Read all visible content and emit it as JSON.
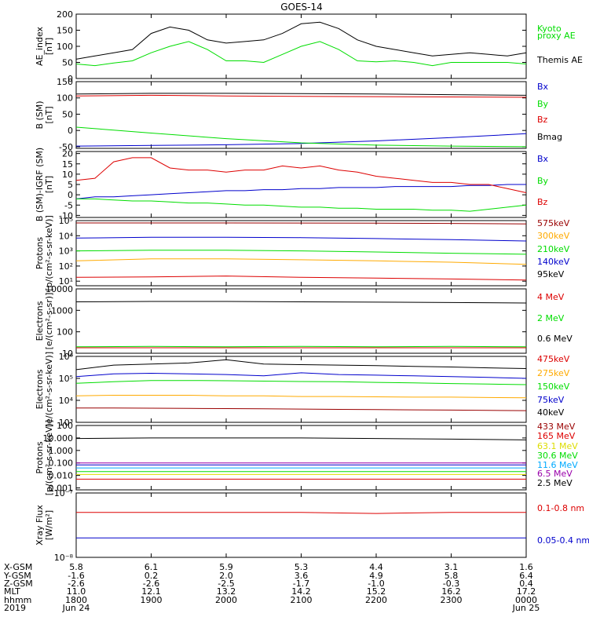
{
  "title": "GOES-14",
  "colors": {
    "black": "#000000",
    "green": "#00dd00",
    "red": "#dd0000",
    "blue": "#0000cc",
    "orange": "#ffaa00",
    "darkred": "#990000",
    "yellow": "#dddd00",
    "cyan": "#00aaff",
    "purple": "#9900aa"
  },
  "chart_data": [
    {
      "type": "line",
      "ylabel": "AE_index",
      "yunit": "[nT]",
      "ylim": [
        0,
        200
      ],
      "ticks": [
        {
          "v": 200,
          "l": "200"
        },
        {
          "v": 150,
          "l": "150"
        },
        {
          "v": 100,
          "l": "100"
        },
        {
          "v": 50,
          "l": "50"
        },
        {
          "v": 0,
          "l": "0"
        }
      ],
      "x": [
        0,
        0.25,
        0.5,
        0.75,
        1,
        1.25,
        1.5,
        1.75,
        2,
        2.25,
        2.5,
        2.75,
        3,
        3.25,
        3.5,
        3.75,
        4,
        4.25,
        4.5,
        4.75,
        5,
        5.25,
        5.5,
        5.75,
        6
      ],
      "series": [
        {
          "name": "Kyoto proxy AE",
          "color": "green",
          "values": [
            45,
            40,
            48,
            55,
            80,
            100,
            115,
            90,
            55,
            55,
            50,
            75,
            100,
            115,
            90,
            55,
            52,
            55,
            50,
            40,
            50,
            50,
            50,
            50,
            45
          ]
        },
        {
          "name": "Themis AE",
          "color": "black",
          "values": [
            60,
            70,
            80,
            90,
            140,
            160,
            150,
            120,
            110,
            115,
            120,
            140,
            170,
            175,
            155,
            120,
            100,
            90,
            80,
            70,
            75,
            80,
            75,
            70,
            80
          ]
        }
      ],
      "legend": [
        {
          "text": "Kyoto",
          "color": "green"
        },
        {
          "text": "proxy AE",
          "color": "green"
        },
        {
          "text": "Themis AE",
          "color": "black"
        }
      ]
    },
    {
      "type": "line",
      "ylabel": "B (SM)",
      "yunit": "[nT]",
      "ylim": [
        -55,
        150
      ],
      "ticks": [
        {
          "v": 150,
          "l": "150"
        },
        {
          "v": 100,
          "l": "100"
        },
        {
          "v": 50,
          "l": "50"
        },
        {
          "v": 0,
          "l": "0"
        },
        {
          "v": -50,
          "l": "-50"
        }
      ],
      "x": [
        0,
        1,
        2,
        3,
        4,
        5,
        6
      ],
      "series": [
        {
          "name": "Bx",
          "color": "blue",
          "values": [
            -48,
            -46,
            -44,
            -40,
            -32,
            -22,
            -10
          ]
        },
        {
          "name": "By",
          "color": "green",
          "values": [
            10,
            -8,
            -25,
            -38,
            -45,
            -48,
            -50
          ]
        },
        {
          "name": "Bz",
          "color": "red",
          "values": [
            106,
            108,
            106,
            105,
            104,
            103,
            102
          ]
        },
        {
          "name": "Bmag",
          "color": "black",
          "values": [
            112,
            114,
            114,
            113,
            112,
            110,
            108
          ]
        }
      ],
      "legend": [
        {
          "text": "Bx",
          "color": "blue"
        },
        {
          "text": "By",
          "color": "green"
        },
        {
          "text": "Bz",
          "color": "red"
        },
        {
          "text": "Bmag",
          "color": "black"
        }
      ]
    },
    {
      "type": "line",
      "ylabel": "B (SM)-IGRF (SM)",
      "yunit": "[nT]",
      "ylim": [
        -11,
        21
      ],
      "ticks": [
        {
          "v": 20,
          "l": "20"
        },
        {
          "v": 15,
          "l": "15"
        },
        {
          "v": 10,
          "l": "10"
        },
        {
          "v": 5,
          "l": "5"
        },
        {
          "v": 0,
          "l": "0"
        },
        {
          "v": -5,
          "l": "-5"
        },
        {
          "v": -10,
          "l": "-10"
        }
      ],
      "x": [
        0,
        0.25,
        0.5,
        0.75,
        1,
        1.25,
        1.5,
        1.75,
        2,
        2.25,
        2.5,
        2.75,
        3,
        3.25,
        3.5,
        3.75,
        4,
        4.25,
        4.5,
        4.75,
        5,
        5.25,
        5.5,
        5.75,
        6
      ],
      "series": [
        {
          "name": "Bx",
          "color": "blue",
          "values": [
            -2,
            -1,
            -1,
            -0.5,
            0,
            0.5,
            1,
            1.5,
            2,
            2,
            2.5,
            2.5,
            3,
            3,
            3.5,
            3.5,
            3.5,
            4,
            4,
            4,
            4,
            4.5,
            4.5,
            5,
            5
          ]
        },
        {
          "name": "By",
          "color": "green",
          "values": [
            -2,
            -2,
            -2.5,
            -3,
            -3,
            -3.5,
            -4,
            -4,
            -4.5,
            -5,
            -5,
            -5.5,
            -6,
            -6,
            -6.5,
            -6.5,
            -7,
            -7,
            -7,
            -7.5,
            -7.5,
            -8,
            -7,
            -6,
            -5
          ]
        },
        {
          "name": "Bz",
          "color": "red",
          "values": [
            7,
            8,
            16,
            18,
            18,
            13,
            12,
            12,
            11,
            12,
            12,
            14,
            13,
            14,
            12,
            11,
            9,
            8,
            7,
            6,
            6,
            5,
            5,
            3,
            1
          ]
        }
      ],
      "legend": [
        {
          "text": "Bx",
          "color": "blue"
        },
        {
          "text": "By",
          "color": "green"
        },
        {
          "text": "Bz",
          "color": "red"
        }
      ]
    },
    {
      "type": "line",
      "log": true,
      "ylabel": "Protons",
      "yunit": "[p/(cm²-s-sr-keV)]",
      "ylim": [
        5,
        100000
      ],
      "ticks": [
        {
          "v": 100000,
          "l": "10⁵"
        },
        {
          "v": 10000,
          "l": "10⁴"
        },
        {
          "v": 1000,
          "l": "10³"
        },
        {
          "v": 100,
          "l": "10²"
        },
        {
          "v": 10,
          "l": "10¹"
        }
      ],
      "x": [
        0,
        1,
        2,
        3,
        4,
        5,
        6
      ],
      "series": [
        {
          "name": "575keV",
          "color": "darkred",
          "values": [
            70000,
            70000,
            70000,
            69000,
            68000,
            65000,
            60000
          ]
        },
        {
          "name": "300keV",
          "color": "blue",
          "values": [
            7000,
            8000,
            8000,
            7500,
            6500,
            5500,
            4500
          ]
        },
        {
          "name": "210keV",
          "color": "green",
          "values": [
            1000,
            1100,
            1100,
            1000,
            850,
            700,
            600
          ]
        },
        {
          "name": "140keV",
          "color": "orange",
          "values": [
            220,
            300,
            300,
            260,
            220,
            180,
            130
          ]
        },
        {
          "name": "95keV",
          "color": "red",
          "values": [
            18,
            19,
            22,
            18,
            16,
            14,
            12
          ]
        }
      ],
      "legend": [
        {
          "text": "575keV",
          "color": "darkred"
        },
        {
          "text": "300keV",
          "color": "orange"
        },
        {
          "text": "210keV",
          "color": "green"
        },
        {
          "text": "140keV",
          "color": "blue"
        },
        {
          "text": "95keV",
          "color": "black"
        }
      ]
    },
    {
      "type": "line",
      "log": true,
      "ylabel": "Electrons",
      "yunit": "[e/(cm²-s-sr)]",
      "ylim": [
        10,
        10000
      ],
      "ticks": [
        {
          "v": 10000,
          "l": "10000"
        },
        {
          "v": 1000,
          "l": "1000"
        },
        {
          "v": 100,
          "l": "100"
        },
        {
          "v": 10,
          "l": "10"
        }
      ],
      "x": [
        0,
        1,
        2,
        3,
        4,
        5,
        6
      ],
      "series": [
        {
          "name": "0.6 MeV",
          "color": "black",
          "values": [
            2500,
            2600,
            2600,
            2500,
            2400,
            2300,
            2200
          ]
        },
        {
          "name": "2 MeV",
          "color": "green",
          "values": [
            20,
            21,
            20,
            21,
            20,
            21,
            20
          ]
        },
        {
          "name": "4 MeV",
          "color": "red",
          "values": [
            18,
            18,
            18,
            18,
            18,
            18,
            18
          ]
        }
      ],
      "legend": [
        {
          "text": "4 MeV",
          "color": "red"
        },
        {
          "text": "2 MeV",
          "color": "green"
        },
        {
          "text": "0.6 MeV",
          "color": "black"
        }
      ]
    },
    {
      "type": "line",
      "log": true,
      "ylabel": "Electrons",
      "yunit": "[e/(cm²-s-sr-keV)]",
      "ylim": [
        1000,
        1000000
      ],
      "ticks": [
        {
          "v": 1000000,
          "l": "10⁶"
        },
        {
          "v": 100000,
          "l": "10⁵"
        },
        {
          "v": 10000,
          "l": "10⁴"
        },
        {
          "v": 1000,
          "l": "10³"
        }
      ],
      "x": [
        0,
        0.5,
        1,
        1.5,
        2,
        2.5,
        3,
        3.5,
        4,
        4.5,
        5,
        5.5,
        6
      ],
      "series": [
        {
          "name": "475keV",
          "color": "black",
          "values": [
            250000,
            400000,
            450000,
            500000,
            700000,
            450000,
            420000,
            400000,
            380000,
            350000,
            330000,
            300000,
            280000
          ]
        },
        {
          "name": "275keV",
          "color": "blue",
          "values": [
            120000,
            160000,
            170000,
            160000,
            150000,
            130000,
            180000,
            150000,
            140000,
            130000,
            120000,
            110000,
            100000
          ]
        },
        {
          "name": "150keV",
          "color": "green",
          "values": [
            60000,
            70000,
            80000,
            80000,
            78000,
            75000,
            72000,
            70000,
            66000,
            62000,
            58000,
            55000,
            52000
          ]
        },
        {
          "name": "75keV",
          "color": "orange",
          "values": [
            16000,
            17000,
            17000,
            17000,
            16000,
            16000,
            15000,
            15000,
            14500,
            14000,
            14000,
            13500,
            13000
          ]
        },
        {
          "name": "40keV",
          "color": "darkred",
          "values": [
            4500,
            4500,
            4400,
            4300,
            4200,
            4100,
            4000,
            3900,
            3800,
            3700,
            3600,
            3500,
            3400
          ]
        }
      ],
      "legend": [
        {
          "text": "475keV",
          "color": "red"
        },
        {
          "text": "275keV",
          "color": "orange"
        },
        {
          "text": "150keV",
          "color": "green"
        },
        {
          "text": "75keV",
          "color": "blue"
        },
        {
          "text": "40keV",
          "color": "black"
        }
      ]
    },
    {
      "type": "line",
      "log": true,
      "ylabel": "Protons",
      "yunit": "[p/(cm²-s-sr-keV)]",
      "ylim": [
        0.0007,
        100
      ],
      "ticks": [
        {
          "v": 100,
          "l": "100"
        },
        {
          "v": 10,
          "l": "10.000"
        },
        {
          "v": 1,
          "l": "1.000"
        },
        {
          "v": 0.1,
          "l": "0.100"
        },
        {
          "v": 0.01,
          "l": "0.010"
        },
        {
          "v": 0.001,
          "l": "0.001"
        }
      ],
      "x": [
        0,
        1,
        2,
        3,
        4,
        5,
        6
      ],
      "series": [
        {
          "name": "433 MeV",
          "color": "black",
          "values": [
            9,
            10,
            10,
            10,
            9,
            8,
            7
          ]
        },
        {
          "name": "165 MeV",
          "color": "purple",
          "values": [
            0.1,
            0.1,
            0.1,
            0.1,
            0.1,
            0.1,
            0.1
          ]
        },
        {
          "name": "63.1 MeV",
          "color": "blue",
          "values": [
            0.07,
            0.07,
            0.07,
            0.07,
            0.07,
            0.07,
            0.07
          ]
        },
        {
          "name": "30.6 MeV",
          "color": "cyan",
          "values": [
            0.04,
            0.04,
            0.04,
            0.04,
            0.04,
            0.04,
            0.04
          ]
        },
        {
          "name": "11.6 MeV",
          "color": "green",
          "values": [
            0.02,
            0.02,
            0.02,
            0.02,
            0.02,
            0.02,
            0.02
          ]
        },
        {
          "name": "6.5 MeV",
          "color": "yellow",
          "values": [
            0.012,
            0.012,
            0.012,
            0.012,
            0.012,
            0.012,
            0.012
          ]
        },
        {
          "name": "2.5 MeV",
          "color": "red",
          "values": [
            0.005,
            0.005,
            0.005,
            0.005,
            0.005,
            0.005,
            0.005
          ]
        }
      ],
      "legend": [
        {
          "text": "433 MeV",
          "color": "darkred"
        },
        {
          "text": "165 MeV",
          "color": "red"
        },
        {
          "text": "63.1 MeV",
          "color": "yellow"
        },
        {
          "text": "30.6 MeV",
          "color": "green"
        },
        {
          "text": "11.6 MeV",
          "color": "cyan"
        },
        {
          "text": "6.5 MeV",
          "color": "purple"
        },
        {
          "text": "2.5 MeV",
          "color": "black"
        }
      ]
    },
    {
      "type": "line",
      "log": true,
      "ylabel": "Xray Flux",
      "yunit": "[W/m²]",
      "ylim": [
        1e-08,
        1e-07
      ],
      "ticks": [
        {
          "v": 1e-07,
          "l": "10⁻⁷"
        },
        {
          "v": 1e-08,
          "l": "10⁻⁸"
        }
      ],
      "x": [
        0,
        1,
        2,
        3,
        4,
        5,
        6
      ],
      "series": [
        {
          "name": "0.1-0.8 nm",
          "color": "red",
          "values": [
            5e-08,
            5e-08,
            5e-08,
            5e-08,
            4.8e-08,
            5e-08,
            5e-08
          ]
        },
        {
          "name": "0.05-0.4 nm",
          "color": "blue",
          "values": [
            2e-08,
            2e-08,
            2e-08,
            2e-08,
            2e-08,
            2e-08,
            2e-08
          ]
        }
      ],
      "legend": [
        {
          "text": "0.1-0.8 nm",
          "color": "red"
        },
        {
          "text": "0.05-0.4 nm",
          "color": "blue"
        }
      ]
    }
  ],
  "xaxis": {
    "labels": [
      "X-GSM",
      "Y-GSM",
      "Z-GSM",
      "MLT",
      "hhmm",
      "2019"
    ],
    "columns": [
      [
        "5.8",
        "-1.6",
        "-2.6",
        "11.0",
        "1800",
        "Jun 24"
      ],
      [
        "6.1",
        "0.2",
        "-2.6",
        "12.1",
        "1900",
        ""
      ],
      [
        "5.9",
        "2.0",
        "-2.5",
        "13.2",
        "2000",
        ""
      ],
      [
        "5.3",
        "3.6",
        "-1.7",
        "14.2",
        "2100",
        ""
      ],
      [
        "4.4",
        "4.9",
        "-1.0",
        "15.2",
        "2200",
        ""
      ],
      [
        "3.1",
        "5.8",
        "-0.3",
        "16.2",
        "2300",
        ""
      ],
      [
        "1.6",
        "6.4",
        "0.4",
        "17.2",
        "0000",
        "Jun 25"
      ]
    ]
  }
}
